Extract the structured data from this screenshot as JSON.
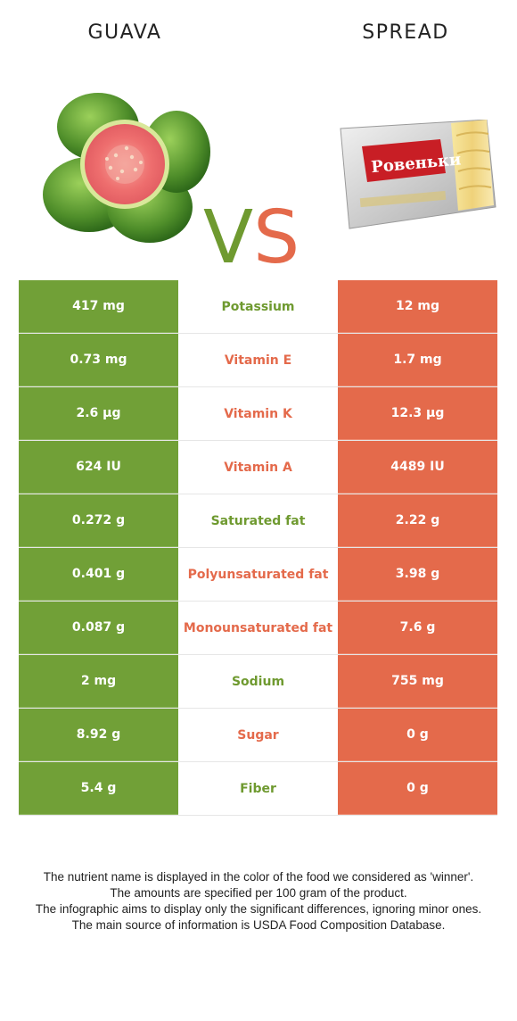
{
  "header": {
    "left_food": "GUAVA",
    "right_food": "SPREAD",
    "vs_v": "V",
    "vs_s": "S"
  },
  "colors": {
    "left_accent": "#71a037",
    "right_accent": "#e46a4b"
  },
  "rows": [
    {
      "left": "417 mg",
      "nutrient": "Potassium",
      "right": "12 mg",
      "winner": "left"
    },
    {
      "left": "0.73 mg",
      "nutrient": "Vitamin E",
      "right": "1.7 mg",
      "winner": "right"
    },
    {
      "left": "2.6 µg",
      "nutrient": "Vitamin K",
      "right": "12.3 µg",
      "winner": "right"
    },
    {
      "left": "624 IU",
      "nutrient": "Vitamin A",
      "right": "4489 IU",
      "winner": "right"
    },
    {
      "left": "0.272 g",
      "nutrient": "Saturated fat",
      "right": "2.22 g",
      "winner": "left"
    },
    {
      "left": "0.401 g",
      "nutrient": "Polyunsaturated fat",
      "right": "3.98 g",
      "winner": "right"
    },
    {
      "left": "0.087 g",
      "nutrient": "Monounsaturated fat",
      "right": "7.6 g",
      "winner": "right"
    },
    {
      "left": "2 mg",
      "nutrient": "Sodium",
      "right": "755 mg",
      "winner": "left"
    },
    {
      "left": "8.92 g",
      "nutrient": "Sugar",
      "right": "0 g",
      "winner": "right"
    },
    {
      "left": "5.4 g",
      "nutrient": "Fiber",
      "right": "0 g",
      "winner": "left"
    }
  ],
  "footnotes": [
    "The nutrient name is displayed in the color of the food we considered as 'winner'.",
    "The amounts are specified per 100 gram of the product.",
    "The infographic aims to display only the significant differences, ignoring minor ones.",
    "The main source of information is USDA Food Composition Database."
  ],
  "images": {
    "left_image": "guava-fruit-image",
    "right_image": "spread-package-image",
    "package_label": "Ровеньки"
  }
}
